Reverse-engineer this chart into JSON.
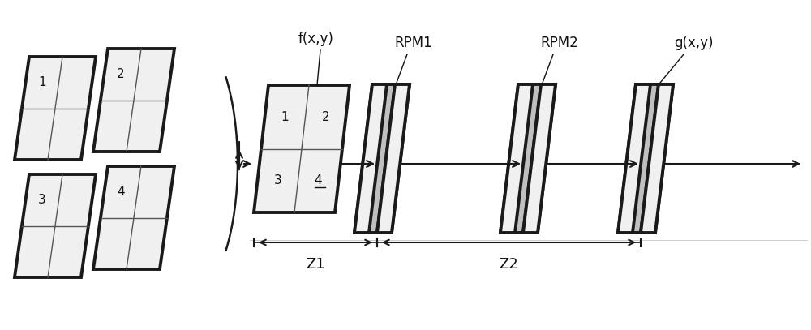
{
  "bg_color": "#ffffff",
  "border_color": "#1a1a1a",
  "shadow_color": "#c0c0c0",
  "face_color": "#f0f0f0",
  "grid_color": "#555555",
  "arrow_color": "#1a1a1a",
  "text_color": "#111111",
  "labels": {
    "fxy": "f(x,y)",
    "rpm1": "RPM1",
    "rpm2": "RPM2",
    "gxy": "g(x,y)",
    "z1": "Z1",
    "z2": "Z2"
  },
  "figsize": [
    10.0,
    4.07
  ],
  "dpi": 100
}
